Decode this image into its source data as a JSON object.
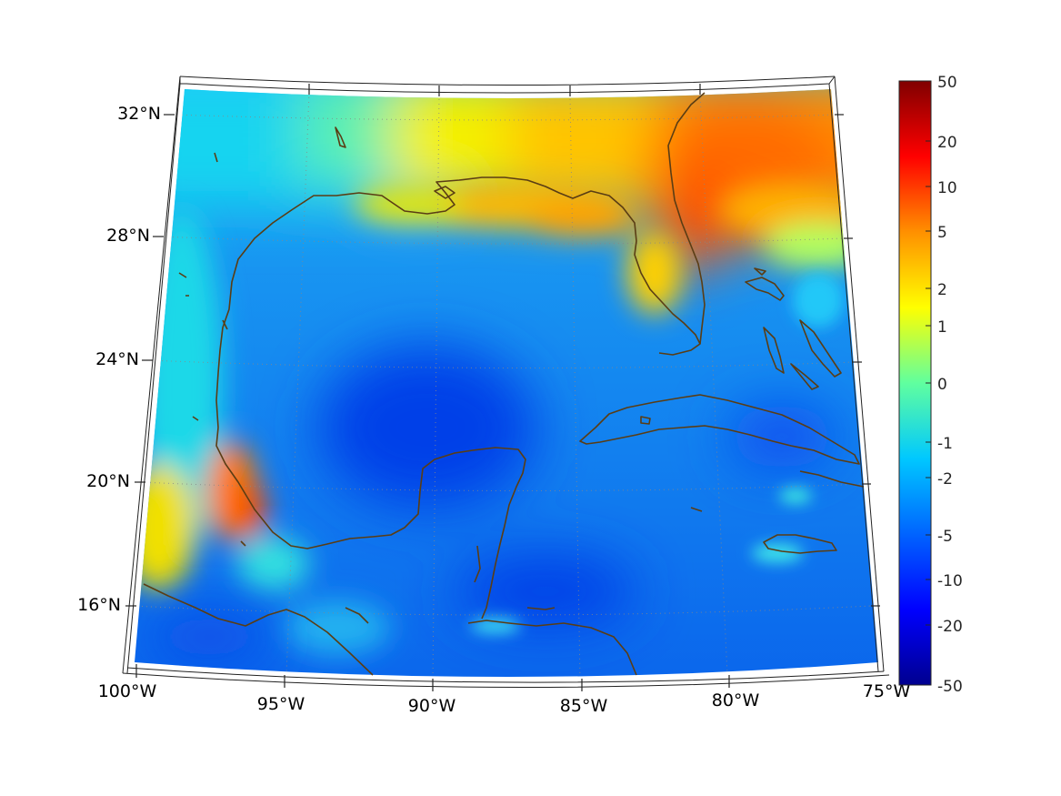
{
  "map": {
    "region": "Gulf of Mexico",
    "lat_labels": [
      "32°N",
      "28°N",
      "24°N",
      "20°N",
      "16°N"
    ],
    "lon_labels": [
      "100°W",
      "95°W",
      "90°W",
      "85°W",
      "80°W",
      "75°W"
    ],
    "lon_range": [
      -100,
      -75
    ],
    "lat_range": [
      14,
      33
    ],
    "coastline_color": "#5a3d14",
    "graticule_color": "#888888"
  },
  "colorbar": {
    "tick_labels": [
      "50",
      "20",
      "10",
      "5",
      "2",
      "1",
      "0",
      "-1",
      "-2",
      "-5",
      "-10",
      "-20",
      "-50"
    ],
    "colors": [
      "#00008f",
      "#0000ff",
      "#0080ff",
      "#00ffff",
      "#80ff80",
      "#ffff00",
      "#ff8000",
      "#ff0000",
      "#800000"
    ]
  }
}
